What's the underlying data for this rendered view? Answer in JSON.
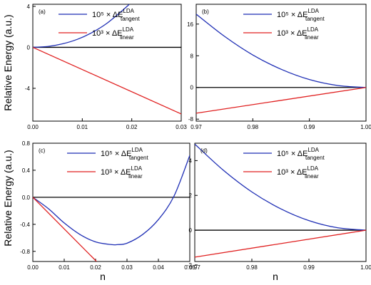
{
  "figure": {
    "ylabel": "Relative Energy (a.u.)",
    "xlabel": "n",
    "colors": {
      "tangent": "#1f2fb5",
      "linear": "#e02020",
      "zero": "#000000"
    }
  },
  "chart_data": [
    {
      "panel": "(a)",
      "type": "line",
      "xlim": [
        0,
        0.03
      ],
      "ylim": [
        -7.2,
        4.2
      ],
      "xticks": [
        "0.00",
        "0.01",
        "0.02",
        "0.03"
      ],
      "xtick_values": [
        0,
        0.01,
        0.02,
        0.03
      ],
      "yticks": [
        "4",
        "0",
        "-4"
      ],
      "ytick_values": [
        4,
        0,
        -4
      ],
      "legend": {
        "position": "top-right",
        "tangent": "10⁵ × ΔE",
        "linear": "10³ × ΔE",
        "sup": "LDA",
        "sub_tangent": "tangent",
        "sub_linear": "linear"
      },
      "series": [
        {
          "name": "10⁵ × ΔE_tangent^LDA",
          "key": "tangent",
          "x": [
            0,
            0.003,
            0.006,
            0.009,
            0.012,
            0.015,
            0.018,
            0.0195
          ],
          "y": [
            0,
            0.08,
            0.34,
            0.78,
            1.45,
            2.35,
            3.55,
            4.2
          ]
        },
        {
          "name": "10³ × ΔE_linear^LDA",
          "key": "linear",
          "x": [
            0,
            0.03
          ],
          "y": [
            0,
            -6.5
          ]
        }
      ]
    },
    {
      "panel": "(b)",
      "type": "line",
      "xlim": [
        0.97,
        1.0
      ],
      "ylim": [
        -8.5,
        21
      ],
      "xticks": [
        "0.97",
        "0.98",
        "0.99",
        "1.00"
      ],
      "xtick_values": [
        0.97,
        0.98,
        0.99,
        1.0
      ],
      "yticks": [
        "16",
        "8",
        "0",
        "-8"
      ],
      "ytick_values": [
        16,
        8,
        0,
        -8
      ],
      "legend": {
        "position": "top-right",
        "tangent": "10⁵ × ΔE",
        "linear": "10³ × ΔE",
        "sup": "LDA",
        "sub_tangent": "tangent",
        "sub_linear": "linear"
      },
      "series": [
        {
          "name": "10⁵ × ΔE_tangent^LDA",
          "key": "tangent",
          "x": [
            0.97,
            0.975,
            0.98,
            0.985,
            0.99,
            0.995,
            1.0
          ],
          "y": [
            18.5,
            12.9,
            8.2,
            4.6,
            2.0,
            0.5,
            0
          ]
        },
        {
          "name": "10³ × ΔE_linear^LDA",
          "key": "linear",
          "x": [
            0.97,
            1.0
          ],
          "y": [
            -6.5,
            0
          ]
        }
      ]
    },
    {
      "panel": "(c)",
      "type": "line",
      "xlim": [
        0,
        0.05
      ],
      "ylim": [
        -0.95,
        0.8
      ],
      "xticks": [
        "0.00",
        "0.01",
        "0.02",
        "0.03",
        "0.04",
        "0.05"
      ],
      "xtick_values": [
        0,
        0.01,
        0.02,
        0.03,
        0.04,
        0.05
      ],
      "yticks": [
        "0.8",
        "0.4",
        "0.0",
        "-0.4",
        "-0.8"
      ],
      "ytick_values": [
        0.8,
        0.4,
        0,
        -0.4,
        -0.8
      ],
      "legend": {
        "position": "top-right",
        "tangent": "10⁵ × ΔE",
        "linear": "10³ × ΔE",
        "sup": "LDA",
        "sub_tangent": "tangent",
        "sub_linear": "linear"
      },
      "series": [
        {
          "name": "10⁵ × ΔE_tangent^LDA",
          "key": "tangent",
          "x": [
            0,
            0.005,
            0.01,
            0.015,
            0.02,
            0.025,
            0.027,
            0.03,
            0.035,
            0.04,
            0.045,
            0.05
          ],
          "y": [
            0,
            -0.17,
            -0.38,
            -0.55,
            -0.66,
            -0.7,
            -0.7,
            -0.68,
            -0.55,
            -0.33,
            0.02,
            0.62
          ]
        },
        {
          "name": "10³ × ΔE_linear^LDA",
          "key": "linear",
          "x": [
            0,
            0.0203
          ],
          "y": [
            0,
            -0.95
          ]
        }
      ]
    },
    {
      "panel": "(d)",
      "type": "line",
      "xlim": [
        0.97,
        1.0
      ],
      "ylim": [
        -1.8,
        5.0
      ],
      "xticks": [
        "0.97",
        "0.98",
        "0.99",
        "1.00"
      ],
      "xtick_values": [
        0.97,
        0.98,
        0.99,
        1.0
      ],
      "yticks": [
        "4",
        "2",
        "0",
        "-2"
      ],
      "ytick_values": [
        4,
        2,
        0,
        -2
      ],
      "legend": {
        "position": "top-right",
        "tangent": "10⁵ × ΔE",
        "linear": "10³ × ΔE",
        "sup": "LDA",
        "sub_tangent": "tangent",
        "sub_linear": "linear"
      },
      "series": [
        {
          "name": "10⁵ × ΔE_tangent^LDA",
          "key": "tangent",
          "x": [
            0.97,
            0.975,
            0.98,
            0.985,
            0.99,
            0.995,
            1.0
          ],
          "y": [
            4.95,
            3.45,
            2.2,
            1.24,
            0.55,
            0.14,
            0
          ]
        },
        {
          "name": "10³ × ΔE_linear^LDA",
          "key": "linear",
          "x": [
            0.97,
            1.0
          ],
          "y": [
            -1.55,
            0
          ]
        }
      ]
    }
  ]
}
